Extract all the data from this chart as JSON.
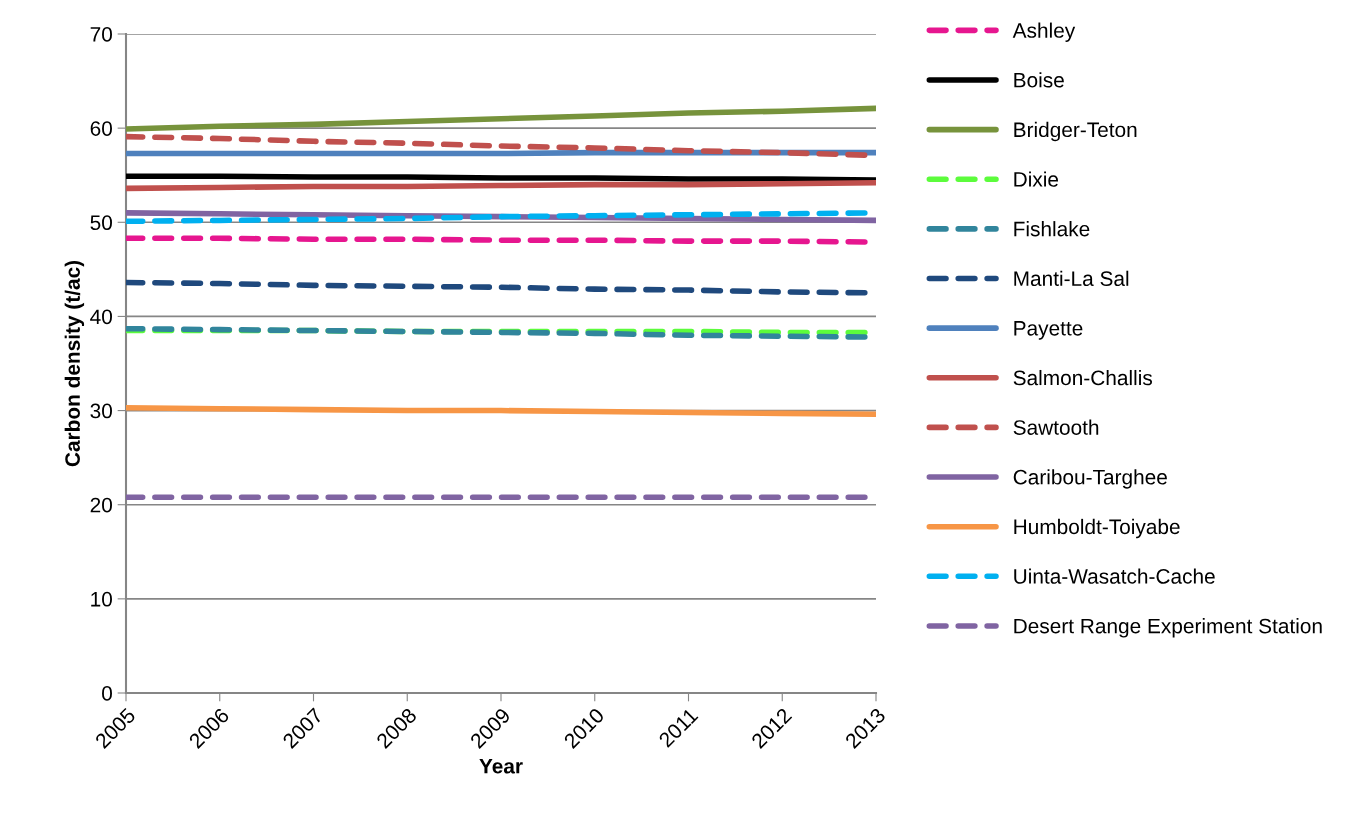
{
  "chart_data": {
    "type": "line",
    "xlabel": "Year",
    "ylabel": "Carbon density (t/ac)",
    "x": [
      2005,
      2006,
      2007,
      2008,
      2009,
      2010,
      2011,
      2012,
      2013
    ],
    "xlim": [
      2005,
      2013
    ],
    "xticks": [
      2005,
      2006,
      2007,
      2008,
      2009,
      2010,
      2011,
      2012,
      2013
    ],
    "ylim": [
      0,
      70
    ],
    "yticks": [
      0,
      10,
      20,
      30,
      40,
      50,
      60,
      70
    ],
    "grid": "y",
    "legend": "right",
    "marker": "none",
    "series": [
      {
        "name": "Ashley",
        "color": "#e6168f",
        "line_style": "dashed",
        "values": [
          48.3,
          48.3,
          48.2,
          48.2,
          48.1,
          48.1,
          48.0,
          48.0,
          47.9
        ]
      },
      {
        "name": "Boise",
        "color": "#000000",
        "line_style": "solid",
        "values": [
          54.9,
          54.9,
          54.8,
          54.8,
          54.7,
          54.7,
          54.6,
          54.6,
          54.5
        ]
      },
      {
        "name": "Bridger-Teton",
        "color": "#77933c",
        "line_style": "solid",
        "values": [
          59.9,
          60.2,
          60.4,
          60.7,
          61.0,
          61.3,
          61.6,
          61.8,
          62.1
        ]
      },
      {
        "name": "Dixie",
        "color": "#5cfc3c",
        "line_style": "dashed",
        "values": [
          38.5,
          38.5,
          38.5,
          38.4,
          38.4,
          38.4,
          38.4,
          38.3,
          38.3
        ]
      },
      {
        "name": "Fishlake",
        "color": "#31859c",
        "line_style": "dashed",
        "values": [
          38.7,
          38.6,
          38.5,
          38.4,
          38.3,
          38.2,
          38.0,
          37.9,
          37.8
        ]
      },
      {
        "name": "Manti-La Sal",
        "color": "#1f497d",
        "line_style": "dashed",
        "values": [
          43.6,
          43.5,
          43.3,
          43.2,
          43.1,
          42.9,
          42.8,
          42.6,
          42.5
        ]
      },
      {
        "name": "Payette",
        "color": "#4f81bd",
        "line_style": "solid",
        "values": [
          57.3,
          57.3,
          57.3,
          57.3,
          57.3,
          57.4,
          57.4,
          57.4,
          57.4
        ]
      },
      {
        "name": "Salmon-Challis",
        "color": "#c0504d",
        "line_style": "solid",
        "values": [
          53.6,
          53.7,
          53.8,
          53.8,
          53.9,
          54.0,
          54.0,
          54.1,
          54.2
        ]
      },
      {
        "name": "Sawtooth",
        "color": "#c0504d",
        "line_style": "dashed",
        "values": [
          59.1,
          58.9,
          58.6,
          58.4,
          58.1,
          57.9,
          57.6,
          57.4,
          57.1
        ]
      },
      {
        "name": "Caribou-Targhee",
        "color": "#8064a2",
        "line_style": "solid",
        "values": [
          51.0,
          50.9,
          50.8,
          50.7,
          50.6,
          50.5,
          50.4,
          50.3,
          50.2
        ]
      },
      {
        "name": "Humboldt-Toiyabe",
        "color": "#f79646",
        "line_style": "solid",
        "values": [
          30.3,
          30.2,
          30.1,
          30.0,
          30.0,
          29.9,
          29.8,
          29.7,
          29.6
        ]
      },
      {
        "name": "Uinta-Wasatch-Cache",
        "color": "#00b0f0",
        "line_style": "dashed",
        "values": [
          50.1,
          50.2,
          50.3,
          50.4,
          50.6,
          50.7,
          50.8,
          50.9,
          51.0
        ]
      },
      {
        "name": "Desert Range Experiment Station",
        "color": "#8064a2",
        "line_style": "dashed",
        "values": [
          20.8,
          20.8,
          20.8,
          20.8,
          20.8,
          20.8,
          20.8,
          20.8,
          20.8
        ]
      }
    ]
  }
}
